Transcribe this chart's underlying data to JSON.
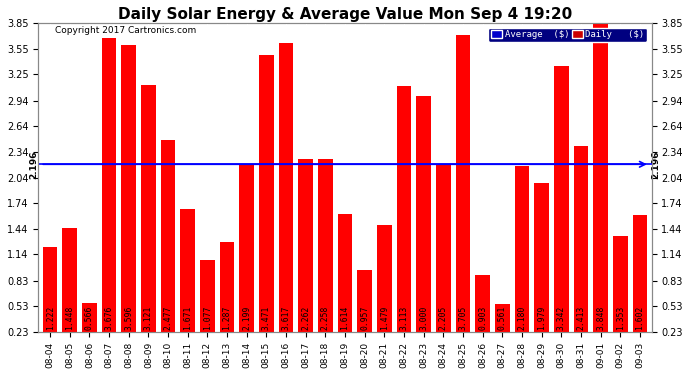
{
  "title": "Daily Solar Energy & Average Value Mon Sep 4 19:20",
  "copyright": "Copyright 2017 Cartronics.com",
  "average_value": 2.196,
  "average_label": "2.196",
  "bar_color": "#ff0000",
  "average_line_color": "#0000ff",
  "legend_avg_bg": "#0000cc",
  "legend_daily_bg": "#cc0000",
  "legend_avg_label": "Average  ($)",
  "legend_daily_label": "Daily   ($)",
  "background_color": "#ffffff",
  "grid_color": "#aaaaaa",
  "categories": [
    "08-04",
    "08-05",
    "08-06",
    "08-07",
    "08-08",
    "08-09",
    "08-10",
    "08-11",
    "08-12",
    "08-13",
    "08-14",
    "08-15",
    "08-16",
    "08-17",
    "08-18",
    "08-19",
    "08-20",
    "08-21",
    "08-22",
    "08-23",
    "08-24",
    "08-25",
    "08-26",
    "08-27",
    "08-28",
    "08-29",
    "08-30",
    "08-31",
    "09-01",
    "09-02",
    "09-03"
  ],
  "values": [
    1.222,
    1.448,
    0.566,
    3.676,
    3.596,
    3.121,
    2.477,
    1.671,
    1.077,
    1.287,
    2.199,
    3.471,
    3.617,
    2.262,
    2.258,
    1.614,
    0.957,
    1.479,
    3.113,
    3.0,
    2.205,
    3.705,
    0.903,
    0.561,
    2.18,
    1.979,
    3.342,
    2.413,
    3.848,
    1.353,
    1.602
  ],
  "ylim_min": 0.23,
  "ylim_max": 3.85,
  "yticks": [
    0.23,
    0.53,
    0.83,
    1.14,
    1.44,
    1.74,
    2.04,
    2.34,
    2.64,
    2.94,
    3.25,
    3.55,
    3.85
  ],
  "title_fontsize": 11,
  "tick_fontsize": 7,
  "label_fontsize": 5.8,
  "bar_width": 0.75
}
